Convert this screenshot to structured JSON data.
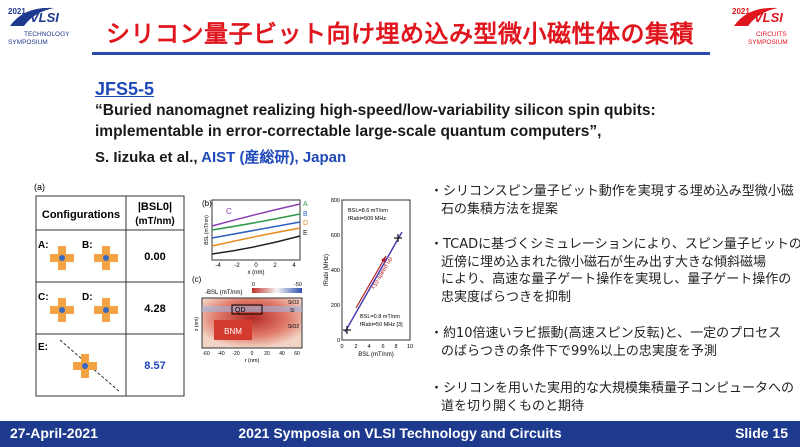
{
  "logos": {
    "left": {
      "year": "2021",
      "name": "VLSI",
      "line1": "TECHNOLOGY",
      "line2": "SYMPOSIUM"
    },
    "right": {
      "year": "2021",
      "name": "VLSI",
      "line1": "CIRCUITS",
      "line2": "SYMPOSIUM"
    }
  },
  "title": "シリコン量子ビット向け埋め込み型微小磁性体の集積",
  "paper": {
    "id": "JFS5-5",
    "title_lines": [
      "“Buried nanomagnet realizing high-speed/low-variability silicon spin qubits:",
      " implementable in error-correctable large-scale quantum computers”,"
    ],
    "authors": "S. Iizuka et al.,",
    "affiliation": "AIST (産総研), Japan"
  },
  "figure": {
    "panel_labels": [
      "(a)",
      "(b)",
      "(c)"
    ],
    "table": {
      "header": [
        "Configurations",
        "|BSL0|",
        "(mT/nm)"
      ],
      "rows": [
        {
          "labels": [
            "A:",
            "B:"
          ],
          "value": "0.00"
        },
        {
          "labels": [
            "C:",
            "D:"
          ],
          "value": "4.28"
        },
        {
          "labels": [
            "E:"
          ],
          "value": "8.57"
        }
      ]
    },
    "panel_b": {
      "curves": [
        "C",
        "A",
        "B",
        "D",
        "E"
      ],
      "y_label": "BSL (mT/nm)",
      "x_label": "x (nm)",
      "xticks": [
        "-4",
        "-2",
        "0",
        "2",
        "4"
      ]
    },
    "panel_c": {
      "colorbar_label": "-BSL (mT/nm)",
      "colorbar_ticks": [
        "0",
        "-50"
      ],
      "qd": "QD",
      "bnm": "BNM",
      "layers": [
        "SiO2",
        "Si",
        "SiO2"
      ],
      "x_label": "r (nm)",
      "y_label": "z (nm)",
      "xticks": [
        "-60",
        "-40",
        "-20",
        "0",
        "20",
        "40",
        "60"
      ]
    },
    "rabi": {
      "high": [
        "BSL=8.6 mT/nm",
        "fRabi=509 MHz"
      ],
      "low": [
        "BSL=0.8 mT/nm",
        "fRabi=50 MHz [3]"
      ],
      "arrow": "×10 speed up",
      "y_label": "fRabi (MHz)",
      "x_label": "BSL (mT/nm)",
      "yticks": [
        "0",
        "200",
        "400",
        "600",
        "800"
      ],
      "xticks": [
        "0",
        "2",
        "4",
        "6",
        "8",
        "10"
      ]
    }
  },
  "bullets": [
    [
      "・シリコンスピン量子ビット動作を実現する埋め込み型微小磁",
      "石の集積方法を提案"
    ],
    [
      "・TCADに基づくシミュレーションにより、スピン量子ビットの極",
      "近傍に埋め込まれた微小磁石が生み出す大きな傾斜磁場",
      "により、高速な量子ゲート操作を実現し、量子ゲート操作の",
      "忠実度ばらつきを抑制"
    ],
    [
      "・約10倍速いラビ振動(高速スピン反転)と、一定のプロセス",
      "のばらつきの条件下で99%以上の忠実度を予測"
    ],
    [
      "・シリコンを用いた実用的な大規模集積量子コンピュータへの",
      "道を切り開くものと期待"
    ]
  ],
  "footer": {
    "date": "27-April-2021",
    "event": "2021 Symposia on VLSI Technology and Circuits",
    "slide": "Slide 15"
  }
}
